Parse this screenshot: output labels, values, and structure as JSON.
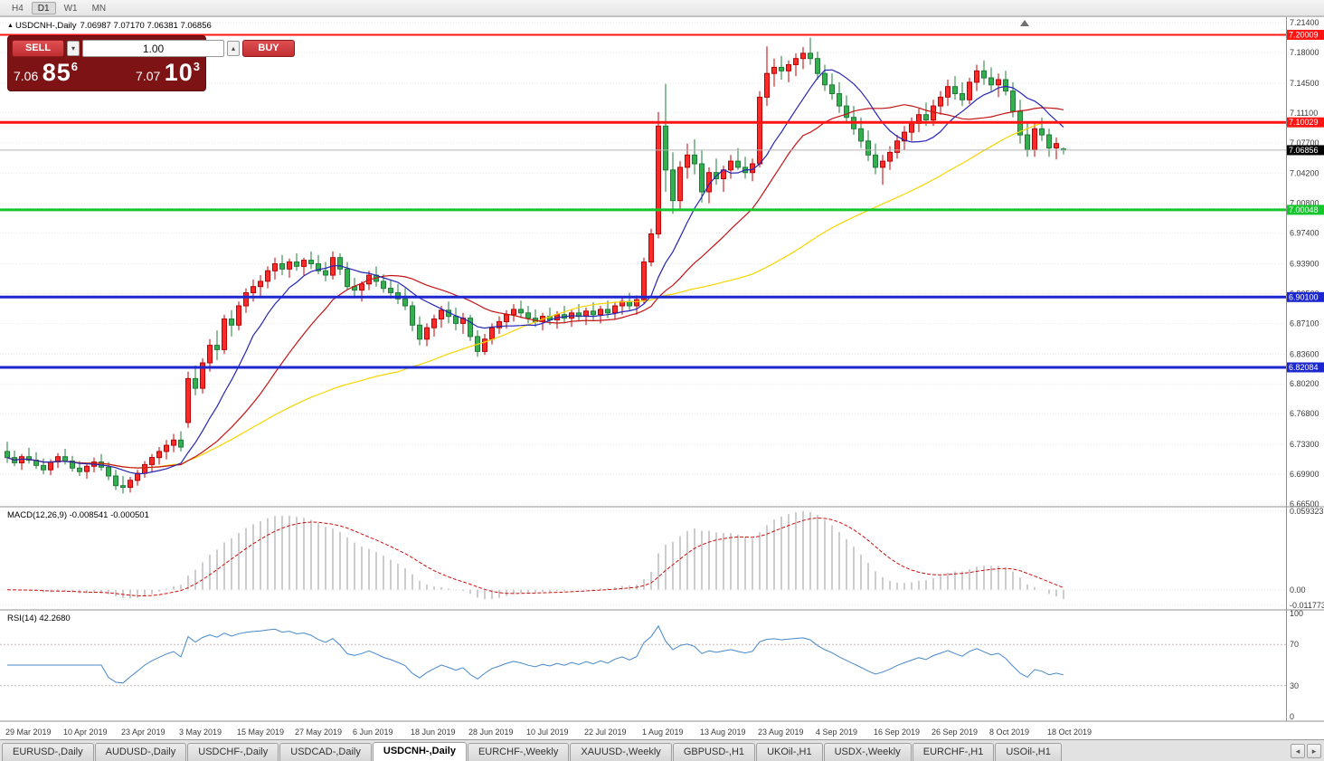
{
  "toolbar": {
    "timeframes": [
      {
        "label": "H4",
        "active": false
      },
      {
        "label": "D1",
        "active": true
      },
      {
        "label": "W1",
        "active": false
      },
      {
        "label": "MN",
        "active": false
      }
    ]
  },
  "chart_header": {
    "collapse_icon": "▲",
    "symbol": "USDCNH-,Daily",
    "ohlc_text": "7.06987 7.07170 7.06381 7.06856"
  },
  "trade_panel": {
    "sell_label": "SELL",
    "buy_label": "BUY",
    "volume": "1.00",
    "dropdown_icon": "▾",
    "stepper_icon": "▴",
    "bid_big": "7.06",
    "bid_pips": "85",
    "bid_point": "6",
    "ask_big": "7.07",
    "ask_pips": "10",
    "ask_point": "3"
  },
  "indicators": {
    "macd": {
      "name": "MACD(12,26,9)",
      "values": "-0.008541 -0.000501"
    },
    "rsi": {
      "name": "RSI(14)",
      "value": "42.2680"
    }
  },
  "chart_data": {
    "type": "candlestick",
    "symbol": "USDCNH-",
    "timeframe": "Daily",
    "colors": {
      "bull": "#f92b2b",
      "bull_border": "#c00000",
      "bear": "#35ae50",
      "bear_border": "#1e7c37",
      "grid": "#e6e6e6"
    },
    "price_axis_ticks": [
      "7.21400",
      "7.18000",
      "7.14500",
      "7.11100",
      "7.07700",
      "7.04200",
      "7.00800",
      "6.97400",
      "6.93900",
      "6.90500",
      "6.87100",
      "6.83600",
      "6.80200",
      "6.76800",
      "6.73300",
      "6.69900",
      "6.66500"
    ],
    "x_axis_ticks": [
      {
        "i": 0,
        "label": "29 Mar 2019"
      },
      {
        "i": 8,
        "label": "10 Apr 2019"
      },
      {
        "i": 16,
        "label": "23 Apr 2019"
      },
      {
        "i": 24,
        "label": "3 May 2019"
      },
      {
        "i": 32,
        "label": "15 May 2019"
      },
      {
        "i": 40,
        "label": "27 May 2019"
      },
      {
        "i": 48,
        "label": "6 Jun 2019"
      },
      {
        "i": 56,
        "label": "18 Jun 2019"
      },
      {
        "i": 64,
        "label": "28 Jun 2019"
      },
      {
        "i": 72,
        "label": "10 Jul 2019"
      },
      {
        "i": 80,
        "label": "22 Jul 2019"
      },
      {
        "i": 88,
        "label": "1 Aug 2019"
      },
      {
        "i": 96,
        "label": "13 Aug 2019"
      },
      {
        "i": 104,
        "label": "23 Aug 2019"
      },
      {
        "i": 112,
        "label": "4 Sep 2019"
      },
      {
        "i": 120,
        "label": "16 Sep 2019"
      },
      {
        "i": 128,
        "label": "26 Sep 2019"
      },
      {
        "i": 136,
        "label": "8 Oct 2019"
      },
      {
        "i": 144,
        "label": "18 Oct 2019"
      }
    ],
    "candles": [
      [
        6.725,
        6.736,
        6.712,
        6.718
      ],
      [
        6.718,
        6.726,
        6.708,
        6.712
      ],
      [
        6.712,
        6.722,
        6.704,
        6.719
      ],
      [
        6.719,
        6.729,
        6.711,
        6.715
      ],
      [
        6.715,
        6.724,
        6.705,
        6.709
      ],
      [
        6.709,
        6.717,
        6.699,
        6.704
      ],
      [
        6.704,
        6.716,
        6.698,
        6.713
      ],
      [
        6.713,
        6.723,
        6.706,
        6.719
      ],
      [
        6.719,
        6.728,
        6.71,
        6.714
      ],
      [
        6.714,
        6.72,
        6.702,
        6.706
      ],
      [
        6.706,
        6.714,
        6.697,
        6.702
      ],
      [
        6.702,
        6.712,
        6.694,
        6.708
      ],
      [
        6.708,
        6.718,
        6.701,
        6.713
      ],
      [
        6.713,
        6.722,
        6.703,
        6.707
      ],
      [
        6.707,
        6.713,
        6.692,
        6.697
      ],
      [
        6.697,
        6.704,
        6.681,
        6.686
      ],
      [
        6.686,
        6.697,
        6.677,
        6.684
      ],
      [
        6.684,
        6.696,
        6.678,
        6.692
      ],
      [
        6.692,
        6.704,
        6.686,
        6.7
      ],
      [
        6.7,
        6.714,
        6.695,
        6.71
      ],
      [
        6.71,
        6.722,
        6.702,
        6.718
      ],
      [
        6.718,
        6.73,
        6.71,
        6.725
      ],
      [
        6.725,
        6.738,
        6.716,
        6.732
      ],
      [
        6.732,
        6.745,
        6.724,
        6.738
      ],
      [
        6.738,
        6.748,
        6.725,
        6.73
      ],
      [
        6.758,
        6.816,
        6.752,
        6.808
      ],
      [
        6.808,
        6.823,
        6.789,
        6.797
      ],
      [
        6.797,
        6.831,
        6.791,
        6.826
      ],
      [
        6.826,
        6.853,
        6.816,
        6.846
      ],
      [
        6.846,
        6.863,
        6.829,
        6.841
      ],
      [
        6.841,
        6.881,
        6.836,
        6.876
      ],
      [
        6.876,
        6.886,
        6.856,
        6.869
      ],
      [
        6.869,
        6.896,
        6.863,
        6.891
      ],
      [
        6.891,
        6.911,
        6.883,
        6.906
      ],
      [
        6.906,
        6.921,
        6.896,
        6.913
      ],
      [
        6.913,
        6.926,
        6.901,
        6.919
      ],
      [
        6.919,
        6.936,
        6.911,
        6.931
      ],
      [
        6.931,
        6.946,
        6.921,
        6.939
      ],
      [
        6.939,
        6.949,
        6.926,
        6.933
      ],
      [
        6.933,
        6.945,
        6.923,
        6.941
      ],
      [
        6.941,
        6.951,
        6.931,
        6.936
      ],
      [
        6.936,
        6.946,
        6.926,
        6.943
      ],
      [
        6.943,
        6.953,
        6.933,
        6.939
      ],
      [
        6.939,
        6.949,
        6.927,
        6.931
      ],
      [
        6.931,
        6.941,
        6.919,
        6.926
      ],
      [
        6.926,
        6.953,
        6.921,
        6.946
      ],
      [
        6.946,
        6.951,
        6.926,
        6.933
      ],
      [
        6.933,
        6.941,
        6.909,
        6.913
      ],
      [
        6.913,
        6.923,
        6.901,
        6.909
      ],
      [
        6.909,
        6.919,
        6.896,
        6.916
      ],
      [
        6.916,
        6.931,
        6.909,
        6.926
      ],
      [
        6.926,
        6.936,
        6.913,
        6.919
      ],
      [
        6.919,
        6.927,
        6.906,
        6.911
      ],
      [
        6.911,
        6.921,
        6.899,
        6.906
      ],
      [
        6.906,
        6.916,
        6.893,
        6.899
      ],
      [
        6.899,
        6.911,
        6.886,
        6.891
      ],
      [
        6.891,
        6.896,
        6.862,
        6.869
      ],
      [
        6.869,
        6.879,
        6.846,
        6.853
      ],
      [
        6.853,
        6.871,
        6.845,
        6.866
      ],
      [
        6.866,
        6.881,
        6.856,
        6.876
      ],
      [
        6.876,
        6.891,
        6.866,
        6.886
      ],
      [
        6.886,
        6.896,
        6.871,
        6.879
      ],
      [
        6.879,
        6.889,
        6.863,
        6.871
      ],
      [
        6.871,
        6.883,
        6.859,
        6.877
      ],
      [
        6.877,
        6.881,
        6.851,
        6.856
      ],
      [
        6.856,
        6.863,
        6.833,
        6.839
      ],
      [
        6.839,
        6.859,
        6.835,
        6.853
      ],
      [
        6.853,
        6.871,
        6.847,
        6.866
      ],
      [
        6.866,
        6.879,
        6.859,
        6.873
      ],
      [
        6.873,
        6.886,
        6.865,
        6.881
      ],
      [
        6.881,
        6.893,
        6.873,
        6.887
      ],
      [
        6.887,
        6.897,
        6.877,
        6.883
      ],
      [
        6.883,
        6.891,
        6.871,
        6.877
      ],
      [
        6.877,
        6.887,
        6.867,
        6.873
      ],
      [
        6.873,
        6.883,
        6.863,
        6.879
      ],
      [
        6.879,
        6.889,
        6.869,
        6.875
      ],
      [
        6.875,
        6.885,
        6.865,
        6.881
      ],
      [
        6.881,
        6.891,
        6.871,
        6.877
      ],
      [
        6.877,
        6.887,
        6.867,
        6.883
      ],
      [
        6.883,
        6.893,
        6.873,
        6.879
      ],
      [
        6.879,
        6.889,
        6.869,
        6.885
      ],
      [
        6.885,
        6.895,
        6.875,
        6.881
      ],
      [
        6.881,
        6.891,
        6.871,
        6.887
      ],
      [
        6.887,
        6.897,
        6.877,
        6.883
      ],
      [
        6.883,
        6.896,
        6.876,
        6.891
      ],
      [
        6.891,
        6.901,
        6.881,
        6.896
      ],
      [
        6.896,
        6.906,
        6.886,
        6.891
      ],
      [
        6.891,
        6.903,
        6.881,
        6.898
      ],
      [
        6.898,
        6.946,
        6.893,
        6.941
      ],
      [
        6.941,
        6.979,
        6.936,
        6.973
      ],
      [
        6.973,
        7.112,
        6.968,
        7.096
      ],
      [
        7.096,
        7.144,
        7.021,
        7.046
      ],
      [
        7.046,
        7.066,
        6.996,
        7.011
      ],
      [
        7.011,
        7.056,
        7.001,
        7.049
      ],
      [
        7.049,
        7.076,
        7.036,
        7.063
      ],
      [
        7.063,
        7.081,
        7.041,
        7.053
      ],
      [
        7.053,
        7.069,
        7.009,
        7.021
      ],
      [
        7.021,
        7.049,
        7.008,
        7.043
      ],
      [
        7.043,
        7.059,
        7.029,
        7.036
      ],
      [
        7.036,
        7.051,
        7.021,
        7.046
      ],
      [
        7.046,
        7.063,
        7.036,
        7.056
      ],
      [
        7.056,
        7.071,
        7.046,
        7.049
      ],
      [
        7.049,
        7.061,
        7.036,
        7.043
      ],
      [
        7.043,
        7.059,
        7.033,
        7.053
      ],
      [
        7.053,
        7.136,
        7.049,
        7.129
      ],
      [
        7.129,
        7.187,
        7.119,
        7.156
      ],
      [
        7.156,
        7.173,
        7.141,
        7.163
      ],
      [
        7.163,
        7.176,
        7.149,
        7.159
      ],
      [
        7.159,
        7.171,
        7.146,
        7.166
      ],
      [
        7.166,
        7.179,
        7.153,
        7.173
      ],
      [
        7.173,
        7.186,
        7.161,
        7.179
      ],
      [
        7.179,
        7.197,
        7.166,
        7.173
      ],
      [
        7.173,
        7.181,
        7.149,
        7.156
      ],
      [
        7.156,
        7.166,
        7.136,
        7.143
      ],
      [
        7.143,
        7.156,
        7.126,
        7.133
      ],
      [
        7.133,
        7.146,
        7.111,
        7.119
      ],
      [
        7.119,
        7.131,
        7.099,
        7.106
      ],
      [
        7.106,
        7.119,
        7.086,
        7.093
      ],
      [
        7.093,
        7.106,
        7.071,
        7.079
      ],
      [
        7.079,
        7.091,
        7.056,
        7.063
      ],
      [
        7.063,
        7.076,
        7.041,
        7.049
      ],
      [
        7.049,
        7.063,
        7.029,
        7.056
      ],
      [
        7.056,
        7.073,
        7.046,
        7.066
      ],
      [
        7.066,
        7.086,
        7.059,
        7.079
      ],
      [
        7.079,
        7.096,
        7.069,
        7.089
      ],
      [
        7.089,
        7.106,
        7.079,
        7.099
      ],
      [
        7.099,
        7.116,
        7.089,
        7.109
      ],
      [
        7.109,
        7.123,
        7.096,
        7.103
      ],
      [
        7.103,
        7.126,
        7.096,
        7.119
      ],
      [
        7.119,
        7.136,
        7.109,
        7.129
      ],
      [
        7.129,
        7.149,
        7.119,
        7.141
      ],
      [
        7.141,
        7.153,
        7.126,
        7.133
      ],
      [
        7.133,
        7.146,
        7.119,
        7.126
      ],
      [
        7.126,
        7.151,
        7.121,
        7.146
      ],
      [
        7.146,
        7.166,
        7.136,
        7.159
      ],
      [
        7.159,
        7.171,
        7.143,
        7.151
      ],
      [
        7.151,
        7.163,
        7.136,
        7.143
      ],
      [
        7.143,
        7.156,
        7.129,
        7.149
      ],
      [
        7.149,
        7.159,
        7.131,
        7.136
      ],
      [
        7.136,
        7.146,
        7.106,
        7.113
      ],
      [
        7.113,
        7.126,
        7.076,
        7.086
      ],
      [
        7.086,
        7.101,
        7.061,
        7.069
      ],
      [
        7.069,
        7.099,
        7.061,
        7.093
      ],
      [
        7.093,
        7.106,
        7.079,
        7.086
      ],
      [
        7.086,
        7.093,
        7.061,
        7.071
      ],
      [
        7.071,
        7.083,
        7.058,
        7.076
      ],
      [
        7.06987,
        7.0717,
        7.06381,
        7.06856
      ]
    ],
    "moving_averages": [
      {
        "name": "ma-slow-line",
        "period": 55,
        "color": "#f7d400"
      },
      {
        "name": "ma-medium-line",
        "period": 21,
        "color": "#c41414"
      },
      {
        "name": "ma-fast-line",
        "period": 10,
        "color": "#2525b4"
      }
    ],
    "level_lines": [
      {
        "price": 7.20009,
        "label": "7.20009",
        "color": "#ff1414",
        "width": 2
      },
      {
        "price": 7.10029,
        "label": "7.10029",
        "color": "#ff1414",
        "width": 3
      },
      {
        "price": 7.00048,
        "label": "7.00048",
        "color": "#15c52c",
        "width": 3
      },
      {
        "price": 6.901,
        "label": "6.90100",
        "color": "#1d27cf",
        "width": 3
      },
      {
        "price": 6.82084,
        "label": "6.82084",
        "color": "#1d27cf",
        "width": 3
      }
    ],
    "current_price": {
      "value": 7.06856,
      "label": "7.06856"
    },
    "macd": {
      "range": [
        0.059323,
        -0.011773
      ],
      "axis": [
        {
          "value": 0.059323,
          "label": "0.059323"
        },
        {
          "value": 0,
          "label": "0.00"
        },
        {
          "value": -0.011773,
          "label": "-0.011773"
        }
      ]
    },
    "rsi": {
      "period": 14,
      "axis": [
        "100",
        "70",
        "30",
        "0"
      ],
      "levels": [
        70,
        30
      ]
    }
  },
  "tab_bar": {
    "scroll_left_icon": "◂",
    "scroll_right_icon": "▸",
    "tabs": [
      {
        "label": "EURUSD-,Daily",
        "active": false
      },
      {
        "label": "AUDUSD-,Daily",
        "active": false
      },
      {
        "label": "USDCHF-,Daily",
        "active": false
      },
      {
        "label": "USDCAD-,Daily",
        "active": false
      },
      {
        "label": "USDCNH-,Daily",
        "active": true
      },
      {
        "label": "EURCHF-,Weekly",
        "active": false
      },
      {
        "label": "XAUUSD-,Weekly",
        "active": false
      },
      {
        "label": "GBPUSD-,H1",
        "active": false
      },
      {
        "label": "UKOil-,H1",
        "active": false
      },
      {
        "label": "USDX-,Weekly",
        "active": false
      },
      {
        "label": "EURCHF-,H1",
        "active": false
      },
      {
        "label": "USOil-,H1",
        "active": false
      }
    ]
  }
}
